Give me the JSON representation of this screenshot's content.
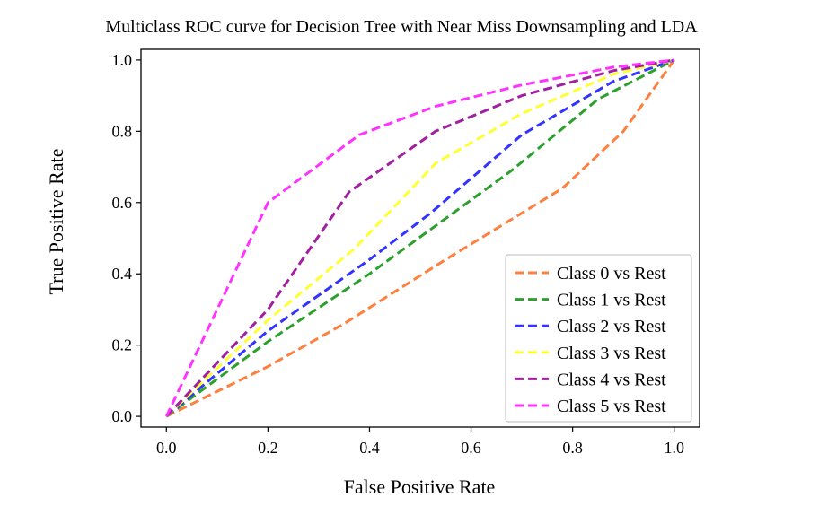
{
  "chart_data": {
    "type": "line",
    "title": "Multiclass ROC curve for Decision Tree with Near Miss Downsampling and LDA",
    "xlabel": "False Positive Rate",
    "ylabel": "True Positive Rate",
    "xlim": [
      -0.05,
      1.05
    ],
    "ylim": [
      -0.03,
      1.03
    ],
    "xticks": [
      "0.0",
      "0.2",
      "0.4",
      "0.6",
      "0.8",
      "1.0"
    ],
    "yticks": [
      "0.0",
      "0.2",
      "0.4",
      "0.6",
      "0.8",
      "1.0"
    ],
    "grid": false,
    "legend_position": "lower-right",
    "line_style": "dashed",
    "series": [
      {
        "name": "Class 0 vs Rest",
        "color": "#ff7f3f",
        "x": [
          0.0,
          0.2,
          0.35,
          0.55,
          0.78,
          0.9,
          1.0
        ],
        "y": [
          0.0,
          0.14,
          0.26,
          0.44,
          0.64,
          0.8,
          1.0
        ]
      },
      {
        "name": "Class 1 vs Rest",
        "color": "#2ca02c",
        "x": [
          0.0,
          0.2,
          0.4,
          0.68,
          0.85,
          1.0
        ],
        "y": [
          0.0,
          0.21,
          0.4,
          0.69,
          0.89,
          1.0
        ]
      },
      {
        "name": "Class 2 vs Rest",
        "color": "#3333ff",
        "x": [
          0.0,
          0.2,
          0.4,
          0.52,
          0.7,
          0.88,
          1.0
        ],
        "y": [
          0.0,
          0.24,
          0.44,
          0.57,
          0.79,
          0.94,
          1.0
        ]
      },
      {
        "name": "Class 3 vs Rest",
        "color": "#ffff33",
        "x": [
          0.0,
          0.2,
          0.37,
          0.53,
          0.7,
          0.88,
          1.0
        ],
        "y": [
          0.0,
          0.27,
          0.47,
          0.71,
          0.85,
          0.96,
          1.0
        ]
      },
      {
        "name": "Class 4 vs Rest",
        "color": "#a020a0",
        "x": [
          0.0,
          0.2,
          0.36,
          0.53,
          0.7,
          0.88,
          1.0
        ],
        "y": [
          0.0,
          0.3,
          0.63,
          0.8,
          0.9,
          0.97,
          1.0
        ]
      },
      {
        "name": "Class 5 vs Rest",
        "color": "#ff33ff",
        "x": [
          0.0,
          0.2,
          0.38,
          0.53,
          0.7,
          0.88,
          1.0
        ],
        "y": [
          0.0,
          0.6,
          0.79,
          0.87,
          0.93,
          0.98,
          1.0
        ]
      }
    ]
  }
}
